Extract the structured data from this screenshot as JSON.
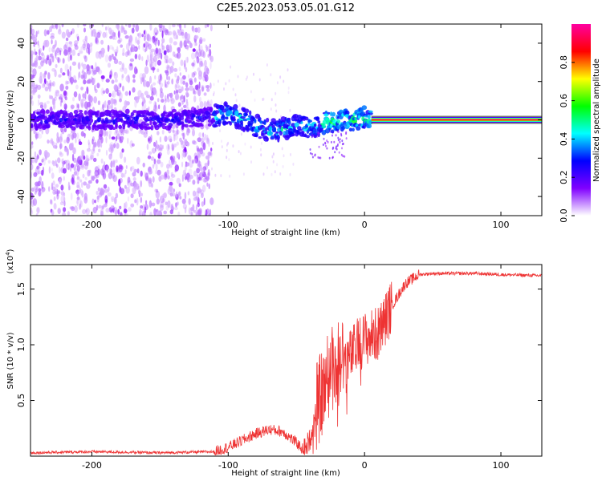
{
  "title": "C2E5.2023.053.05.01.G12",
  "chart_data": [
    {
      "type": "heatmap",
      "xlabel": "Height of straight line (km)",
      "ylabel": "Frequency (Hz)",
      "xlim": [
        -245,
        130
      ],
      "ylim": [
        -50,
        50
      ],
      "xticks": [
        -200,
        -100,
        0,
        100
      ],
      "yticks": [
        -40,
        -20,
        0,
        20,
        40
      ],
      "colorbar": {
        "label": "Normalized spectral amplitude",
        "range": [
          0,
          1
        ],
        "ticks": [
          0.0,
          0.2,
          0.4,
          0.6,
          0.8
        ],
        "colormap": [
          "#ffffff",
          "#8000ff",
          "#0000ff",
          "#00ffff",
          "#00ff00",
          "#ffff00",
          "#ff0000",
          "#ff00a0"
        ]
      },
      "description_points": {
        "noise_region_x": [
          -245,
          -112
        ],
        "noise_freq_range": [
          -50,
          50
        ],
        "band_center_freq": [
          [
            -240,
            0
          ],
          [
            -200,
            0
          ],
          [
            -150,
            0
          ],
          [
            -120,
            1
          ],
          [
            -100,
            3
          ],
          [
            -90,
            1
          ],
          [
            -80,
            -3
          ],
          [
            -70,
            -6
          ],
          [
            -60,
            -5
          ],
          [
            -50,
            -2
          ],
          [
            -40,
            -4
          ],
          [
            -30,
            -2
          ],
          [
            -20,
            0
          ],
          [
            -10,
            0
          ],
          [
            0,
            1
          ],
          [
            10,
            0
          ],
          [
            130,
            0
          ]
        ],
        "carrier_line_x": [
          5,
          130
        ],
        "carrier_freq": 0
      }
    },
    {
      "type": "line",
      "xlabel": "Height of straight line (km)",
      "ylabel": "SNR (10 * v/v)",
      "yscale_label": "(x10^4)",
      "xlim": [
        -245,
        130
      ],
      "ylim": [
        0,
        1.72
      ],
      "xticks": [
        -200,
        -100,
        0,
        100
      ],
      "yticks": [
        0.5,
        1.0,
        1.5
      ],
      "color": "#ee3333",
      "series": [
        {
          "x": [
            -245,
            -200,
            -150,
            -110,
            -100,
            -90,
            -80,
            -70,
            -60,
            -50,
            -45,
            -40,
            -35,
            -30,
            -25,
            -20,
            -15,
            -10,
            -5,
            0,
            10,
            20,
            30,
            40,
            50,
            80,
            100,
            130
          ],
          "y": [
            0.03,
            0.04,
            0.03,
            0.04,
            0.08,
            0.14,
            0.2,
            0.24,
            0.22,
            0.12,
            0.06,
            0.15,
            0.45,
            0.6,
            0.78,
            0.82,
            0.88,
            0.9,
            1.0,
            1.05,
            1.1,
            1.35,
            1.55,
            1.63,
            1.64,
            1.64,
            1.63,
            1.62
          ]
        }
      ]
    }
  ]
}
